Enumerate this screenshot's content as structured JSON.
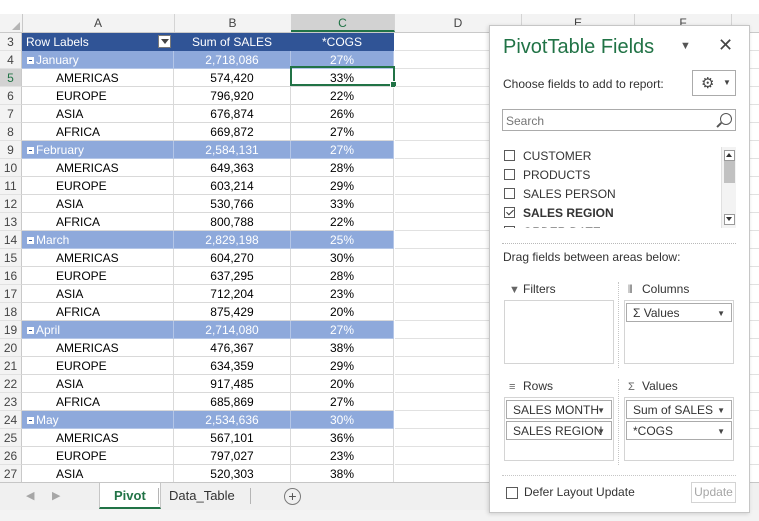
{
  "columns": [
    "A",
    "B",
    "C",
    "D",
    "E",
    "F"
  ],
  "pivot": {
    "headers": {
      "row_labels": "Row Labels",
      "sum_sales": "Sum of SALES",
      "cogs": "*COGS"
    },
    "rows": [
      {
        "num": "4",
        "type": "group",
        "label": "January",
        "sales": "2,718,086",
        "cogs": "27%"
      },
      {
        "num": "5",
        "type": "item",
        "label": "AMERICAS",
        "sales": "574,420",
        "cogs": "33%"
      },
      {
        "num": "6",
        "type": "item",
        "label": "EUROPE",
        "sales": "796,920",
        "cogs": "22%"
      },
      {
        "num": "7",
        "type": "item",
        "label": "ASIA",
        "sales": "676,874",
        "cogs": "26%"
      },
      {
        "num": "8",
        "type": "item",
        "label": "AFRICA",
        "sales": "669,872",
        "cogs": "27%"
      },
      {
        "num": "9",
        "type": "group",
        "label": "February",
        "sales": "2,584,131",
        "cogs": "27%"
      },
      {
        "num": "10",
        "type": "item",
        "label": "AMERICAS",
        "sales": "649,363",
        "cogs": "28%"
      },
      {
        "num": "11",
        "type": "item",
        "label": "EUROPE",
        "sales": "603,214",
        "cogs": "29%"
      },
      {
        "num": "12",
        "type": "item",
        "label": "ASIA",
        "sales": "530,766",
        "cogs": "33%"
      },
      {
        "num": "13",
        "type": "item",
        "label": "AFRICA",
        "sales": "800,788",
        "cogs": "22%"
      },
      {
        "num": "14",
        "type": "group",
        "label": "March",
        "sales": "2,829,198",
        "cogs": "25%"
      },
      {
        "num": "15",
        "type": "item",
        "label": "AMERICAS",
        "sales": "604,270",
        "cogs": "30%"
      },
      {
        "num": "16",
        "type": "item",
        "label": "EUROPE",
        "sales": "637,295",
        "cogs": "28%"
      },
      {
        "num": "17",
        "type": "item",
        "label": "ASIA",
        "sales": "712,204",
        "cogs": "23%"
      },
      {
        "num": "18",
        "type": "item",
        "label": "AFRICA",
        "sales": "875,429",
        "cogs": "20%"
      },
      {
        "num": "19",
        "type": "group",
        "label": "April",
        "sales": "2,714,080",
        "cogs": "27%"
      },
      {
        "num": "20",
        "type": "item",
        "label": "AMERICAS",
        "sales": "476,367",
        "cogs": "38%"
      },
      {
        "num": "21",
        "type": "item",
        "label": "EUROPE",
        "sales": "634,359",
        "cogs": "29%"
      },
      {
        "num": "22",
        "type": "item",
        "label": "ASIA",
        "sales": "917,485",
        "cogs": "20%"
      },
      {
        "num": "23",
        "type": "item",
        "label": "AFRICA",
        "sales": "685,869",
        "cogs": "27%"
      },
      {
        "num": "24",
        "type": "group",
        "label": "May",
        "sales": "2,534,636",
        "cogs": "30%"
      },
      {
        "num": "25",
        "type": "item",
        "label": "AMERICAS",
        "sales": "567,101",
        "cogs": "36%"
      },
      {
        "num": "26",
        "type": "item",
        "label": "EUROPE",
        "sales": "797,027",
        "cogs": "23%"
      },
      {
        "num": "27",
        "type": "item",
        "label": "ASIA",
        "sales": "520,303",
        "cogs": "38%"
      }
    ],
    "header_row_num": "3"
  },
  "tabs": {
    "pivot": "Pivot",
    "data_table": "Data_Table",
    "add": "+"
  },
  "pane": {
    "title": "PivotTable Fields",
    "choose": "Choose fields to add to report:",
    "search_placeholder": "Search",
    "fields": [
      {
        "name": "CUSTOMER",
        "checked": false
      },
      {
        "name": "PRODUCTS",
        "checked": false
      },
      {
        "name": "SALES PERSON",
        "checked": false
      },
      {
        "name": "SALES REGION",
        "checked": true
      },
      {
        "name": "ORDER DATE",
        "checked": false
      }
    ],
    "drag_text": "Drag fields between areas below:",
    "areas": {
      "filters": "Filters",
      "columns": "Columns",
      "rows": "Rows",
      "values": "Values"
    },
    "columns_chips": [
      "Σ  Values"
    ],
    "rows_chips": [
      "SALES MONTH",
      "SALES REGION"
    ],
    "values_chips": [
      "Sum of SALES",
      "*COGS"
    ],
    "defer": "Defer Layout Update",
    "update": "Update"
  },
  "colors": {
    "accent": "#217346",
    "header": "#305496",
    "group": "#8ea9db"
  }
}
